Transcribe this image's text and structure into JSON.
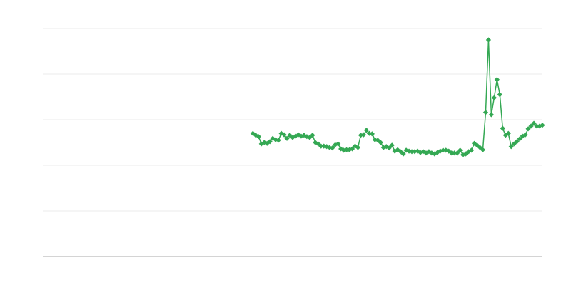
{
  "chart_data": {
    "type": "line",
    "color": "#34a853",
    "grid": true,
    "tick_labels": false,
    "ylim": [
      0,
      5
    ],
    "yticks": [
      0,
      1,
      2,
      3,
      4,
      5
    ],
    "values": [
      null,
      null,
      null,
      null,
      null,
      null,
      null,
      null,
      null,
      null,
      null,
      null,
      null,
      null,
      null,
      null,
      null,
      null,
      null,
      null,
      null,
      null,
      null,
      null,
      null,
      null,
      null,
      null,
      null,
      null,
      null,
      null,
      null,
      null,
      null,
      null,
      null,
      null,
      null,
      null,
      null,
      null,
      null,
      null,
      null,
      null,
      null,
      null,
      null,
      null,
      null,
      null,
      null,
      null,
      null,
      null,
      null,
      null,
      null,
      null,
      null,
      null,
      null,
      null,
      null,
      null,
      null,
      null,
      null,
      null,
      null,
      null,
      null,
      null,
      2.7,
      2.66,
      2.63,
      2.47,
      2.5,
      2.48,
      2.52,
      2.59,
      2.56,
      2.55,
      2.7,
      2.67,
      2.59,
      2.66,
      2.61,
      2.64,
      2.67,
      2.64,
      2.66,
      2.63,
      2.61,
      2.66,
      2.5,
      2.47,
      2.42,
      2.42,
      2.41,
      2.39,
      2.38,
      2.45,
      2.47,
      2.36,
      2.33,
      2.34,
      2.34,
      2.36,
      2.42,
      2.39,
      2.66,
      2.67,
      2.77,
      2.7,
      2.69,
      2.56,
      2.55,
      2.5,
      2.39,
      2.41,
      2.38,
      2.44,
      2.31,
      2.34,
      2.3,
      2.25,
      2.33,
      2.31,
      2.3,
      2.3,
      2.31,
      2.28,
      2.3,
      2.27,
      2.3,
      2.27,
      2.25,
      2.28,
      2.31,
      2.33,
      2.33,
      2.31,
      2.27,
      2.27,
      2.27,
      2.33,
      2.23,
      2.25,
      2.3,
      2.33,
      2.48,
      2.44,
      2.39,
      2.34,
      3.16,
      4.75,
      3.11,
      3.48,
      3.88,
      3.55,
      2.81,
      2.66,
      2.7,
      2.41,
      2.47,
      2.52,
      2.58,
      2.64,
      2.67,
      2.8,
      2.86,
      2.92,
      2.86,
      2.86,
      2.88
    ]
  }
}
